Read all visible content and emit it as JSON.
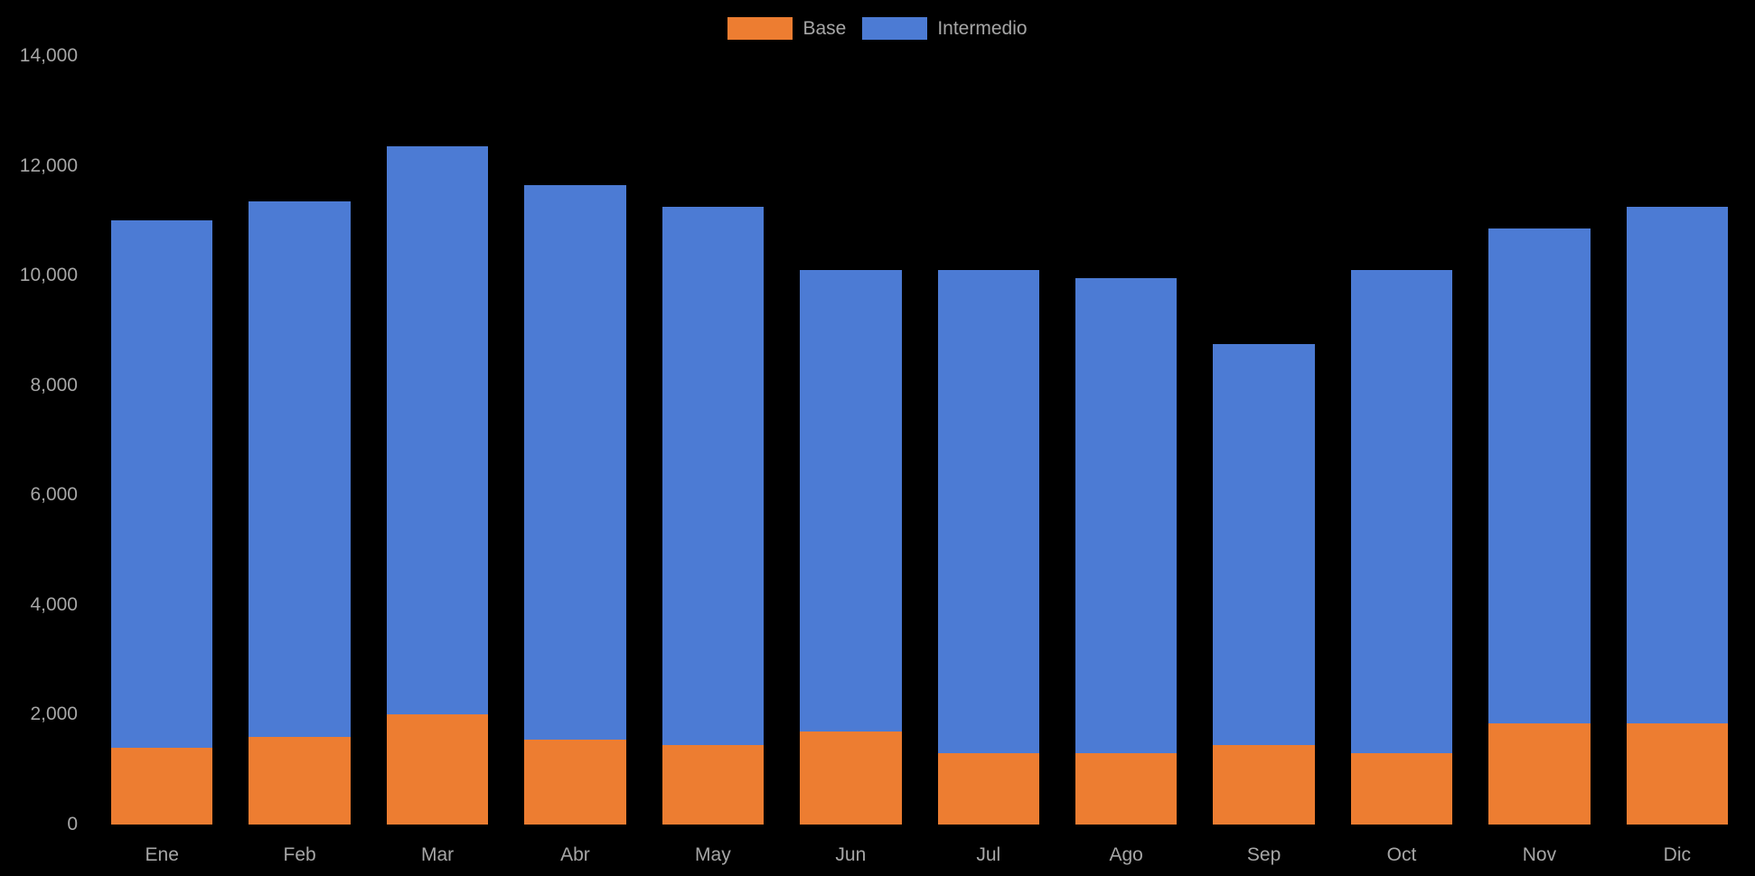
{
  "chart_data": {
    "type": "bar",
    "stacked": true,
    "title": "",
    "background": "#000000",
    "text_color": "#a6a6a6",
    "grid": false,
    "legend_position": "top-center",
    "categories": [
      "Ene",
      "Feb",
      "Mar",
      "Abr",
      "May",
      "Jun",
      "Jul",
      "Ago",
      "Sep",
      "Oct",
      "Nov",
      "Dic"
    ],
    "series": [
      {
        "name": "Base",
        "color": "#ED7D31",
        "values": [
          1400,
          1600,
          2000,
          1550,
          1450,
          1700,
          1300,
          1300,
          1450,
          1300,
          1850,
          1850
        ]
      },
      {
        "name": "Intermedio",
        "color": "#4C7BD4",
        "values": [
          9600,
          9750,
          10350,
          10100,
          9800,
          8400,
          8800,
          8650,
          7300,
          8800,
          9000,
          9400
        ]
      }
    ],
    "totals": [
      11000,
      11350,
      12350,
      11650,
      11250,
      10100,
      10100,
      9950,
      8750,
      10100,
      10850,
      11250
    ],
    "ylim": [
      0,
      14000
    ],
    "y_tick_step": 2000,
    "y_ticks": [
      "0",
      "2,000",
      "4,000",
      "6,000",
      "8,000",
      "10,000",
      "12,000",
      "14,000"
    ],
    "xlabel": "",
    "ylabel": ""
  }
}
